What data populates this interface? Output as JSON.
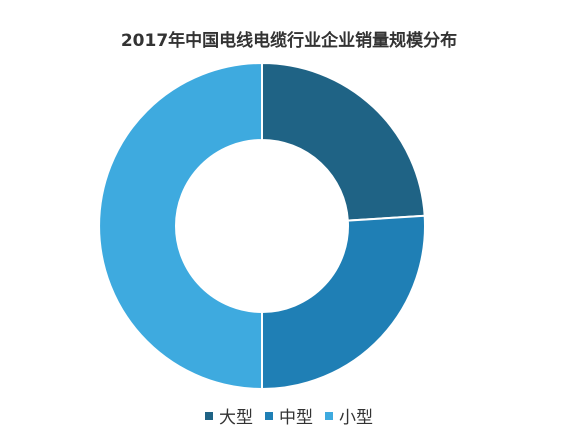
{
  "chart_data": {
    "type": "pie",
    "title": "2017年中国电线电缆行业企业销量规模分布",
    "categories": [
      "大型",
      "中型",
      "小型"
    ],
    "values": [
      24,
      26,
      50
    ],
    "colors": [
      "#1f6385",
      "#1f7fb5",
      "#3eaadf"
    ],
    "legend_position": "bottom",
    "donut": true
  }
}
